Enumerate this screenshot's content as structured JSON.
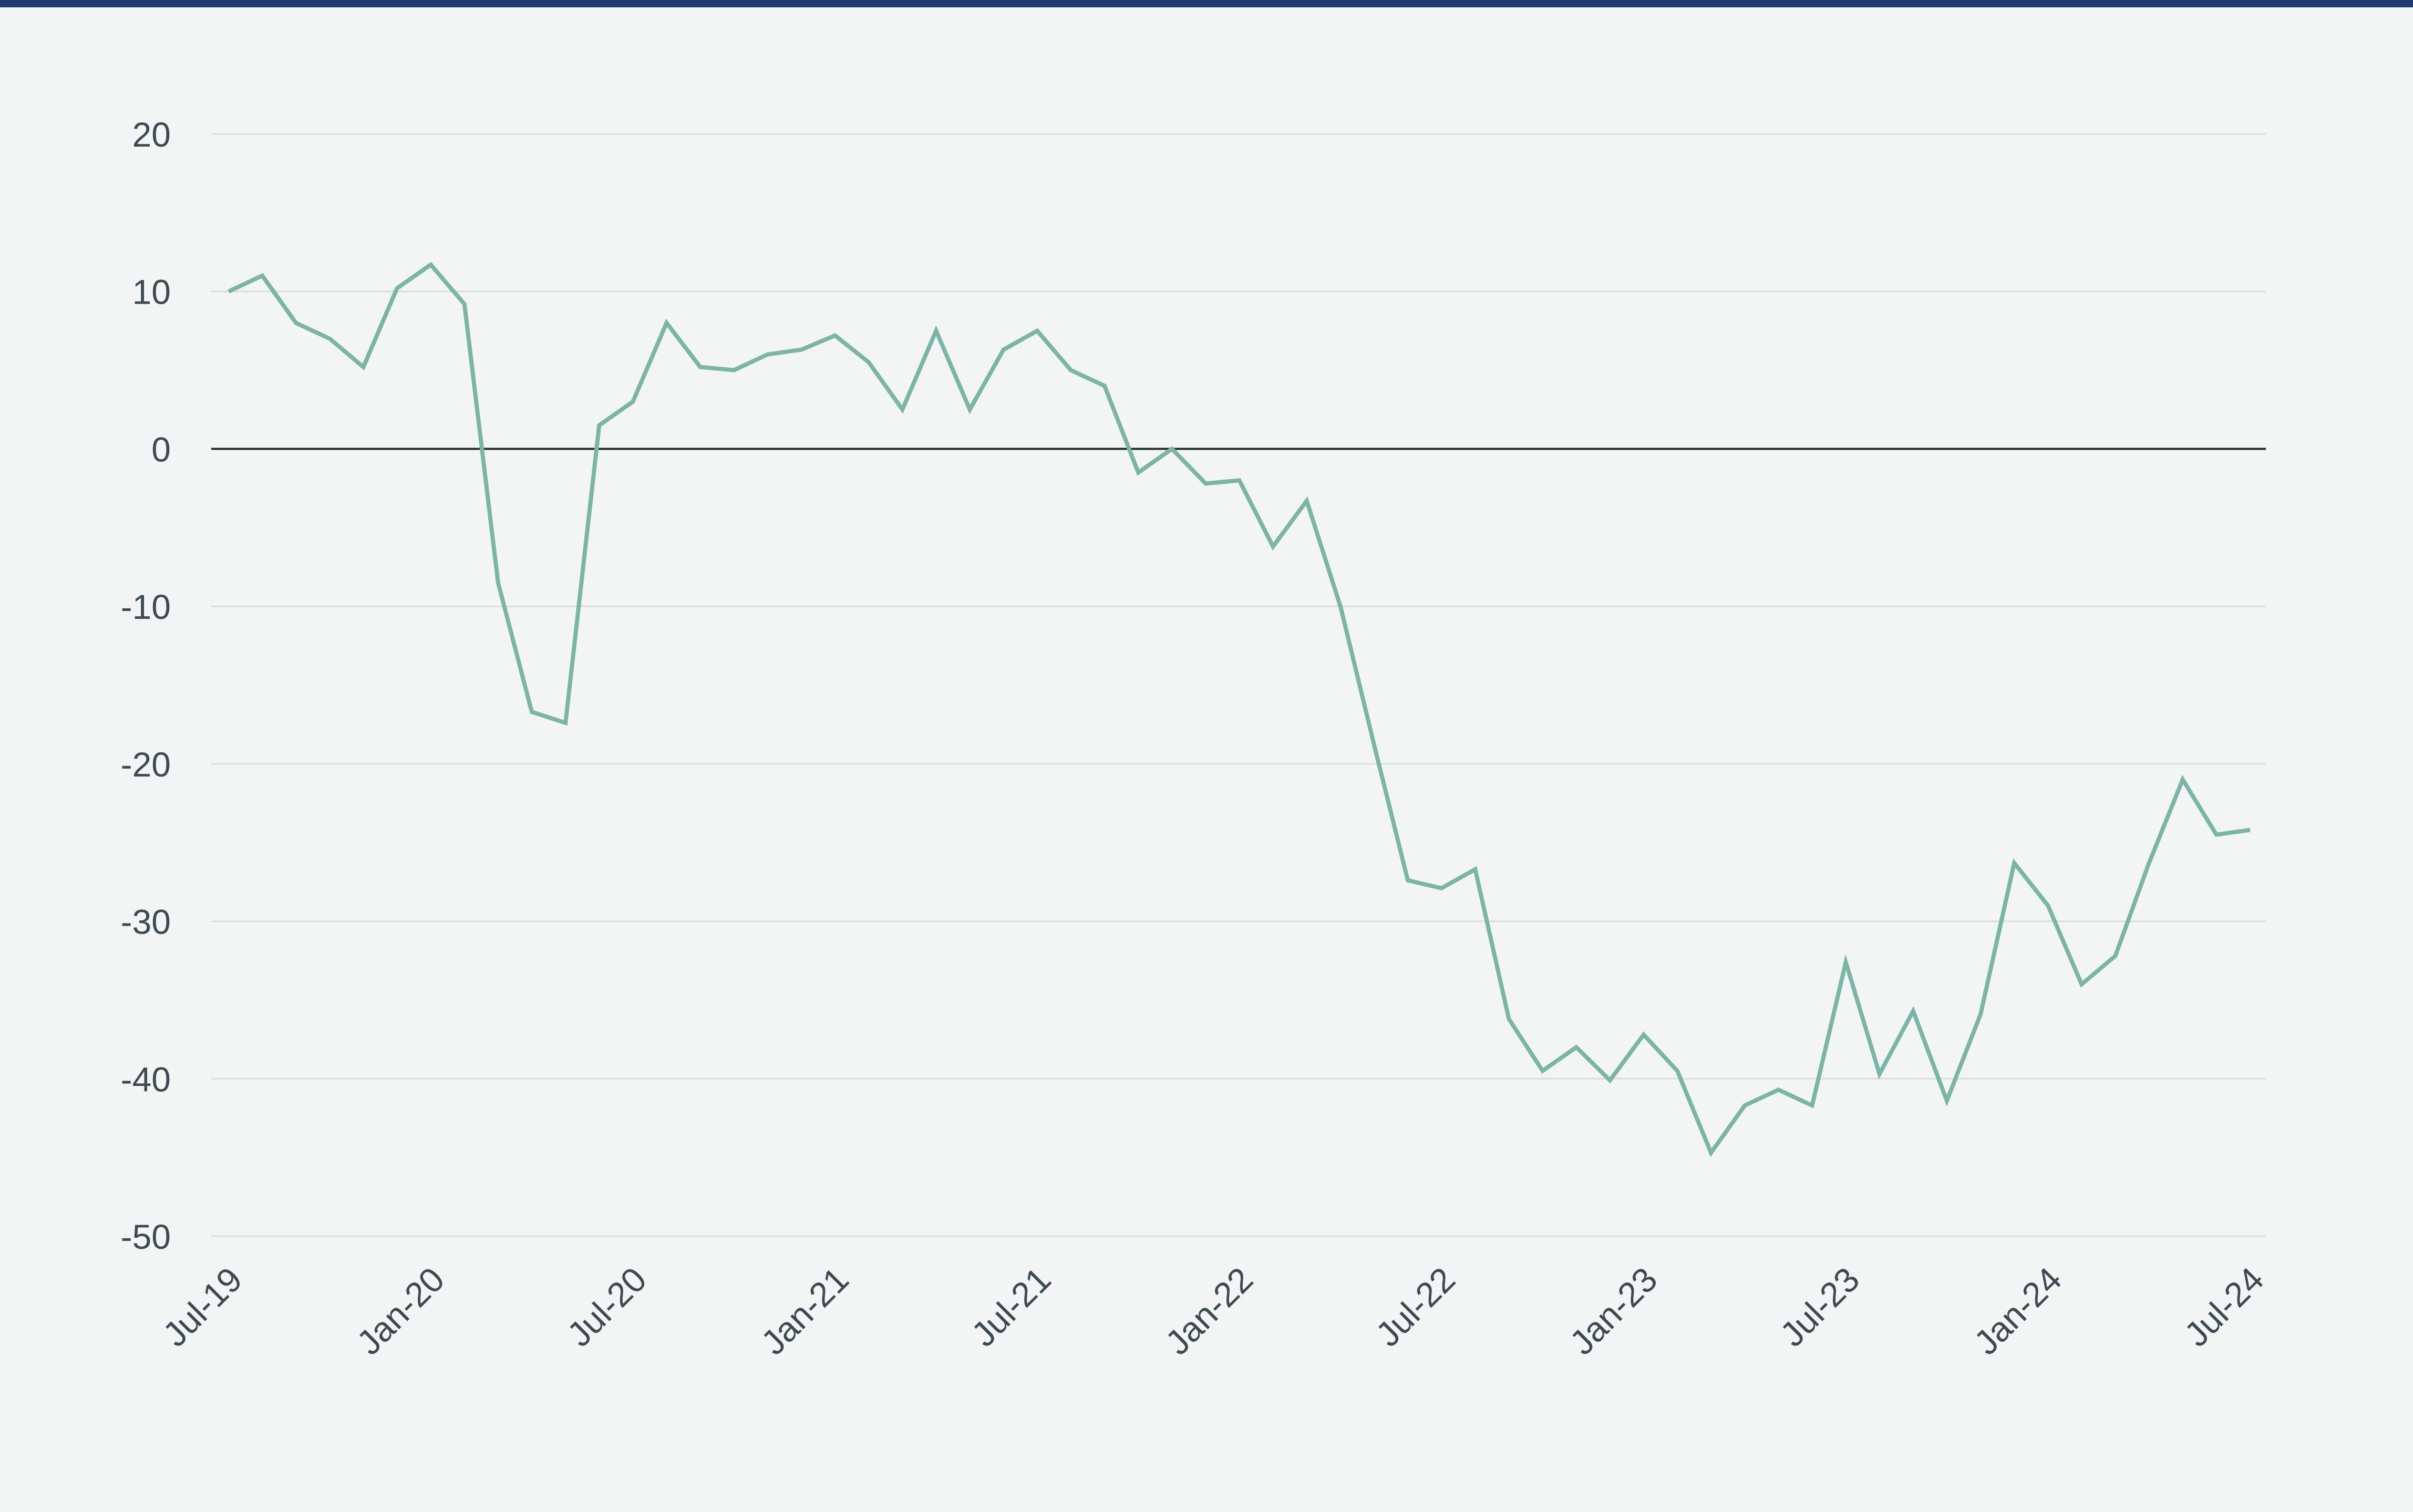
{
  "colors": {
    "background": "#f3f5f4",
    "top_rule": "#1f3a6e",
    "line": "#7ab5a6",
    "grid": "#d9dedd",
    "zero_line": "#1f2f2c",
    "tick_text": "#3d4a52"
  },
  "chart_data": {
    "type": "line",
    "title": "",
    "xlabel": "",
    "ylabel": "",
    "ylim": [
      -50,
      20
    ],
    "yticks": [
      20,
      10,
      0,
      -10,
      -20,
      -30,
      -40,
      -50
    ],
    "ytick_labels": [
      "20",
      "10",
      "0",
      "-10",
      "-20",
      "-30",
      "-40",
      "-50"
    ],
    "xlim": [
      "2019-07",
      "2024-07"
    ],
    "xtick_labels": [
      "Jul-19",
      "Jan-20",
      "Jul-20",
      "Jan-21",
      "Jul-21",
      "Jan-22",
      "Jul-22",
      "Jan-23",
      "Jul-23",
      "Jan-24",
      "Jul-24"
    ],
    "grid": true,
    "legend": "none",
    "series": [
      {
        "color": "#7ab5a6",
        "x": [
          "2019-07",
          "2019-08",
          "2019-09",
          "2019-10",
          "2019-11",
          "2019-12",
          "2020-01",
          "2020-02",
          "2020-03",
          "2020-04",
          "2020-05",
          "2020-06",
          "2020-07",
          "2020-08",
          "2020-09",
          "2020-10",
          "2020-11",
          "2020-12",
          "2021-01",
          "2021-02",
          "2021-03",
          "2021-04",
          "2021-05",
          "2021-06",
          "2021-07",
          "2021-08",
          "2021-09",
          "2021-10",
          "2021-11",
          "2021-12",
          "2022-01",
          "2022-02",
          "2022-03",
          "2022-04",
          "2022-05",
          "2022-06",
          "2022-07",
          "2022-08",
          "2022-09",
          "2022-10",
          "2022-11",
          "2022-12",
          "2023-01",
          "2023-02",
          "2023-03",
          "2023-04",
          "2023-05",
          "2023-06",
          "2023-07",
          "2023-08",
          "2023-09",
          "2023-10",
          "2023-11",
          "2023-12",
          "2024-01",
          "2024-02",
          "2024-03",
          "2024-04",
          "2024-05",
          "2024-06",
          "2024-07"
        ],
        "y": [
          10,
          11,
          8,
          7,
          5.2,
          10.2,
          11.7,
          9.2,
          -8.5,
          -16.7,
          -17.4,
          1.5,
          3,
          8,
          5.2,
          5,
          6,
          6.3,
          7.2,
          5.5,
          2.5,
          7.5,
          2.5,
          6.3,
          7.5,
          5,
          4,
          -1.5,
          0,
          -2.2,
          -2,
          -6.2,
          -3.3,
          -10,
          -18.8,
          -27.4,
          -27.9,
          -26.7,
          -36.2,
          -39.5,
          -38,
          -40.1,
          -37.2,
          -39.5,
          -44.7,
          -41.7,
          -40.7,
          -41.7,
          -32.6,
          -39.7,
          -35.7,
          -41.4,
          -35.9,
          -26.3,
          -29,
          -34,
          -32.2,
          -26.3,
          -21,
          -24.5,
          -24.2
        ]
      }
    ]
  }
}
